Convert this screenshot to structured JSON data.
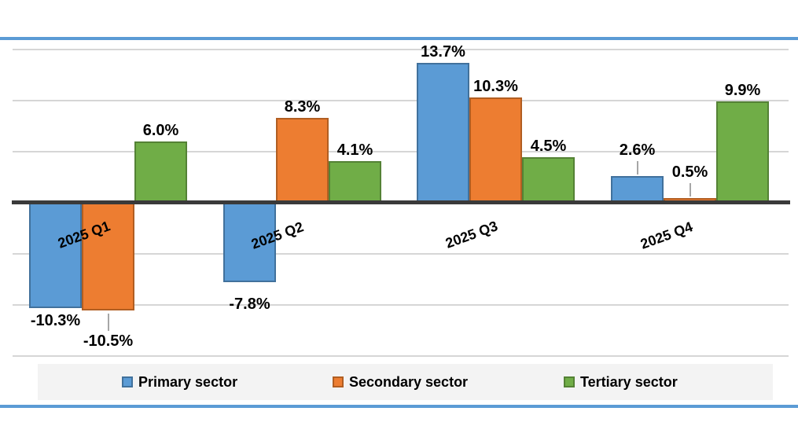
{
  "chart_data": {
    "type": "bar",
    "title": "",
    "xlabel": "",
    "ylabel": "",
    "categories": [
      "2025 Q1",
      "2025 Q2",
      "2025 Q3",
      "2025 Q4"
    ],
    "series": [
      {
        "name": "Primary sector",
        "color": "#5B9BD5",
        "border_color": "#41719C",
        "values": [
          -10.3,
          -7.8,
          13.7,
          2.6
        ]
      },
      {
        "name": "Secondary sector",
        "color": "#ED7D31",
        "border_color": "#B15E22",
        "values": [
          -10.5,
          8.3,
          10.3,
          0.5
        ]
      },
      {
        "name": "Tertiary sector",
        "color": "#70AD47",
        "border_color": "#548235",
        "values": [
          6.0,
          4.1,
          4.5,
          9.9
        ]
      }
    ],
    "data_labels": [
      [
        "-10.3%",
        "-7.8%",
        "13.7%",
        "2.6%"
      ],
      [
        "-10.5%",
        "8.3%",
        "10.3%",
        "0.5%"
      ],
      [
        "6.0%",
        "4.1%",
        "4.5%",
        "9.9%"
      ]
    ],
    "leader_lines": [
      {
        "series": 1,
        "category": 0
      },
      {
        "series": 0,
        "category": 3
      },
      {
        "series": 1,
        "category": 3
      }
    ],
    "ylim": [
      -15,
      15
    ],
    "gridline_step": 5,
    "grid": true,
    "legend_position": "bottom",
    "colors": {
      "axis_line": "#3A3A3A",
      "gridline": "#D6D6D6",
      "accent_rule": "#5B9BD5",
      "legend_background": "#F3F3F3",
      "label_text": "#000000",
      "leader_line": "#A6A6A6"
    }
  }
}
